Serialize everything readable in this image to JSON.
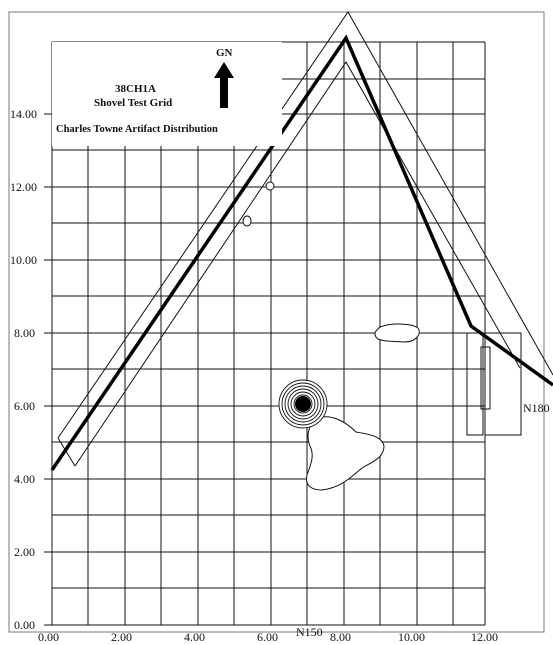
{
  "figure": {
    "north_label": "GN",
    "site_id": "38CH1A",
    "grid_title": "Shovel Test Grid",
    "subtitle": "Charles Towne Artifact Distribution",
    "marker_right": "N180",
    "marker_bottom": "N150"
  },
  "axes": {
    "x_ticks": [
      "0.00",
      "2.00",
      "4.00",
      "6.00",
      "8.00",
      "10.00",
      "12.00"
    ],
    "y_ticks": [
      "0.00",
      "2.00",
      "4.00",
      "6.00",
      "8.00",
      "10.00",
      "12.00",
      "14.00"
    ],
    "x_range": [
      0,
      12
    ],
    "y_range": [
      0,
      14
    ]
  },
  "colors": {
    "ink": "#111111",
    "paper": "#ffffff"
  }
}
